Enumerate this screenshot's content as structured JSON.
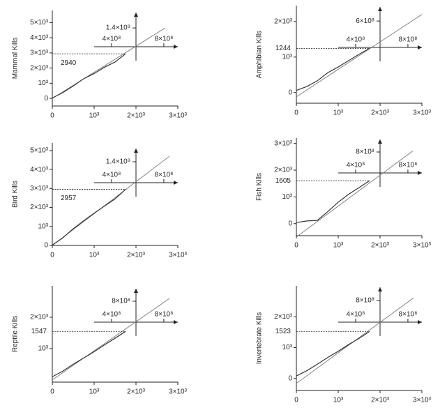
{
  "chart_data": [
    {
      "type": "line",
      "y_label": "Mammal Kills",
      "color": "#333",
      "xlim": [
        0,
        3000
      ],
      "xticks": [
        0,
        {
          "value": 1000,
          "label": "10³"
        },
        {
          "value": 2000,
          "label": "2×10³"
        },
        {
          "value": 3000,
          "label": "3×10³"
        }
      ],
      "ylim": [
        -500,
        5800
      ],
      "yticks": [
        0,
        {
          "value": 1000,
          "label": "10³"
        },
        {
          "value": 2000,
          "label": "2×10³"
        },
        {
          "value": 3000,
          "label": "3×10³"
        },
        {
          "value": 4000,
          "label": "4×10³"
        },
        {
          "value": 5000,
          "label": "5×10³"
        }
      ],
      "x": [
        0,
        250,
        500,
        750,
        1000,
        1250,
        1500,
        1750
      ],
      "values": [
        30,
        380,
        820,
        1300,
        1640,
        2060,
        2400,
        2940
      ],
      "fit_x": [
        0,
        2700
      ],
      "fit_y": [
        0,
        4650
      ],
      "reference": 2940,
      "inset": {
        "xlim": [
          267000000,
          907000000
        ],
        "xticks": [
          {
            "value": 400000000,
            "label": "4×10⁸"
          },
          {
            "value": 800000000,
            "label": "8×10⁸"
          }
        ],
        "ylim": [
          0,
          2550000000
        ],
        "yticks": [
          {
            "value": 1400000000,
            "label": "1.4×10⁹"
          }
        ]
      }
    },
    {
      "type": "line",
      "y_label": "Amphibian Kills",
      "color": "#333",
      "xlim": [
        0,
        3000
      ],
      "xticks": [
        0,
        {
          "value": 1000,
          "label": "10³"
        },
        {
          "value": 2000,
          "label": "2×10³"
        },
        {
          "value": 3000,
          "label": "3×10³"
        }
      ],
      "ylim": [
        -300,
        2450
      ],
      "yticks": [
        0,
        {
          "value": 1000,
          "label": "10³"
        },
        {
          "value": 2000,
          "label": "2×10³"
        }
      ],
      "x": [
        0,
        250,
        500,
        750,
        1000,
        1250,
        1500,
        1750
      ],
      "values": [
        60,
        170,
        330,
        560,
        720,
        900,
        1080,
        1244
      ],
      "fit_x": [
        0,
        3000
      ],
      "fit_y": [
        -120,
        2200
      ],
      "reference": 1244,
      "inset": {
        "xlim": [
          267000000,
          907000000
        ],
        "xticks": [
          {
            "value": 400000000,
            "label": "4×10⁸"
          },
          {
            "value": 800000000,
            "label": "8×10⁸"
          }
        ],
        "ylim": [
          0,
          920000000
        ],
        "yticks": [
          {
            "value": 600000000,
            "label": "6×10⁸"
          }
        ]
      }
    },
    {
      "type": "line",
      "y_label": "Bird Kills",
      "color": "#333",
      "xlim": [
        0,
        3000
      ],
      "xticks": [
        0,
        {
          "value": 1000,
          "label": "10³"
        },
        {
          "value": 2000,
          "label": "2×10³"
        },
        {
          "value": 3000,
          "label": "3×10³"
        }
      ],
      "ylim": [
        0,
        5400
      ],
      "yticks": [
        0,
        {
          "value": 1000,
          "label": "10³"
        },
        {
          "value": 2000,
          "label": "2×10³"
        },
        {
          "value": 3000,
          "label": "3×10³"
        },
        {
          "value": 4000,
          "label": "4×10³"
        },
        {
          "value": 5000,
          "label": "5×10³"
        }
      ],
      "x": [
        0,
        250,
        500,
        750,
        1000,
        1250,
        1500,
        1750
      ],
      "values": [
        20,
        400,
        880,
        1300,
        1700,
        2080,
        2450,
        2957
      ],
      "fit_x": [
        0,
        2800
      ],
      "fit_y": [
        0,
        4700
      ],
      "reference": 2957,
      "inset": {
        "xlim": [
          267000000,
          907000000
        ],
        "xticks": [
          {
            "value": 400000000,
            "label": "4×10⁸"
          },
          {
            "value": 800000000,
            "label": "8×10⁸"
          }
        ],
        "ylim": [
          0,
          2290000000
        ],
        "yticks": [
          {
            "value": 1400000000,
            "label": "1.4×10⁹"
          }
        ]
      }
    },
    {
      "type": "line",
      "y_label": "Fish Kills",
      "color": "#333",
      "xlim": [
        0,
        3000
      ],
      "xticks": [
        0,
        {
          "value": 1000,
          "label": "10³"
        },
        {
          "value": 2000,
          "label": "2×10³"
        },
        {
          "value": 3000,
          "label": "3×10³"
        }
      ],
      "ylim": [
        -450,
        3200
      ],
      "yticks": [
        0,
        {
          "value": 1000,
          "label": "10³"
        },
        {
          "value": 2000,
          "label": "2×10³"
        },
        {
          "value": 3000,
          "label": "3×10³"
        }
      ],
      "x": [
        0,
        250,
        500,
        750,
        1000,
        1250,
        1500,
        1750
      ],
      "values": [
        40,
        100,
        120,
        450,
        800,
        1100,
        1350,
        1605
      ],
      "fit_x": [
        0,
        2780
      ],
      "fit_y": [
        -500,
        2715
      ],
      "reference": 1605,
      "inset": {
        "xlim": [
          267000000,
          907000000
        ],
        "xticks": [
          {
            "value": 400000000,
            "label": "4×10⁸"
          },
          {
            "value": 800000000,
            "label": "8×10⁸"
          }
        ],
        "ylim": [
          0,
          1280000000
        ],
        "yticks": [
          {
            "value": 800000000,
            "label": "8×10⁸"
          }
        ]
      }
    },
    {
      "type": "line",
      "y_label": "Reptile Kills",
      "color": "#333",
      "xlim": [
        0,
        3000
      ],
      "xticks": [
        0,
        {
          "value": 1000,
          "label": "10³"
        },
        {
          "value": 2000,
          "label": "2×10³"
        },
        {
          "value": 3000,
          "label": "3×10³"
        }
      ],
      "ylim": [
        -70,
        3000
      ],
      "yticks": [
        {
          "value": 1000,
          "label": "10³"
        },
        {
          "value": 2000,
          "label": "2×10³"
        }
      ],
      "x": [
        0,
        250,
        500,
        750,
        1000,
        1250,
        1500,
        1750
      ],
      "values": [
        100,
        280,
        500,
        700,
        900,
        1120,
        1330,
        1547
      ],
      "fit_x": [
        0,
        2800
      ],
      "fit_y": [
        0,
        2600
      ],
      "reference": 1547,
      "inset": {
        "xlim": [
          267000000,
          907000000
        ],
        "xticks": [
          {
            "value": 400000000,
            "label": "4×10⁸"
          },
          {
            "value": 800000000,
            "label": "8×10⁸"
          }
        ],
        "ylim": [
          0,
          1280000000
        ],
        "yticks": [
          {
            "value": 800000000,
            "label": "8×10⁸"
          }
        ]
      }
    },
    {
      "type": "line",
      "y_label": "Invertebrate Kills",
      "color": "#333",
      "xlim": [
        0,
        3000
      ],
      "xticks": [
        0,
        {
          "value": 1000,
          "label": "10³"
        },
        {
          "value": 2000,
          "label": "2×10³"
        },
        {
          "value": 3000,
          "label": "3×10³"
        }
      ],
      "ylim": [
        -390,
        3000
      ],
      "yticks": [
        0,
        {
          "value": 1000,
          "label": "10³"
        },
        {
          "value": 2000,
          "label": "2×10³"
        }
      ],
      "x": [
        0,
        250,
        500,
        750,
        1000,
        1250,
        1500,
        1750
      ],
      "values": [
        80,
        250,
        460,
        680,
        880,
        1100,
        1300,
        1523
      ],
      "fit_x": [
        0,
        2800
      ],
      "fit_y": [
        -160,
        2610
      ],
      "reference": 1523,
      "inset": {
        "xlim": [
          267000000,
          907000000
        ],
        "xticks": [
          {
            "value": 400000000,
            "label": "4×10⁸"
          },
          {
            "value": 800000000,
            "label": "8×10⁸"
          }
        ],
        "ylim": [
          0,
          1280000000
        ],
        "yticks": [
          {
            "value": 800000000,
            "label": "8×10⁸"
          }
        ]
      }
    }
  ]
}
